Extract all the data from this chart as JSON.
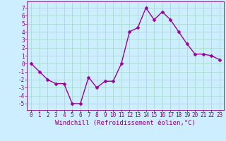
{
  "x": [
    0,
    1,
    2,
    3,
    4,
    5,
    6,
    7,
    8,
    9,
    10,
    11,
    12,
    13,
    14,
    15,
    16,
    17,
    18,
    19,
    20,
    21,
    22,
    23
  ],
  "y": [
    0,
    -1,
    -2,
    -2.5,
    -2.5,
    -5,
    -5,
    -1.7,
    -3,
    -2.2,
    -2.2,
    0,
    4,
    4.5,
    7,
    5.5,
    6.5,
    5.5,
    4,
    2.5,
    1.2,
    1.2,
    1,
    0.5
  ],
  "line_color": "#9b009b",
  "marker_color": "#9b009b",
  "bg_color": "#cceeff",
  "grid_color": "#aaddcc",
  "xlabel": "Windchill (Refroidissement éolien,°C)",
  "xlim": [
    -0.5,
    23.5
  ],
  "ylim": [
    -5.8,
    7.8
  ],
  "yticks": [
    -5,
    -4,
    -3,
    -2,
    -1,
    0,
    1,
    2,
    3,
    4,
    5,
    6,
    7
  ],
  "xticks": [
    0,
    1,
    2,
    3,
    4,
    5,
    6,
    7,
    8,
    9,
    10,
    11,
    12,
    13,
    14,
    15,
    16,
    17,
    18,
    19,
    20,
    21,
    22,
    23
  ],
  "font_color": "#800080",
  "tick_label_size": 5.5,
  "xlabel_size": 6.5,
  "line_width": 1.0,
  "marker_size": 2.5
}
